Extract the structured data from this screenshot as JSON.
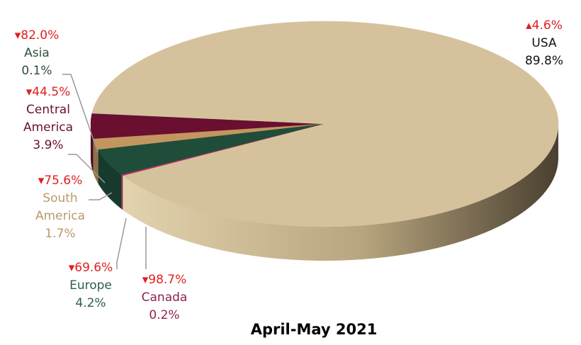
{
  "chart_data": {
    "type": "pie3d",
    "title": "April-May 2021",
    "categories": [
      "Asia",
      "Central\nAmerica",
      "South\nAmerica",
      "Europe",
      "Canada",
      "USA"
    ],
    "values": [
      0.1,
      3.9,
      1.7,
      4.2,
      0.2,
      89.8
    ],
    "value_labels": [
      "0.1%",
      "3.9%",
      "1.7%",
      "4.2%",
      "0.2%",
      "89.8%"
    ],
    "changes": [
      -82.0,
      -44.5,
      -75.6,
      -69.6,
      -98.7,
      4.6
    ],
    "change_labels": [
      "▾82.0%",
      "▾44.5%",
      "▾75.6%",
      "▾69.6%",
      "▾98.7%",
      "▴4.6%"
    ],
    "colors": [
      "#34456a",
      "#6a0f30",
      "#c3965f",
      "#1f4d3a",
      "#b03060",
      "#d5c29c"
    ],
    "label_colors": [
      "#2e4d3a",
      "#6a0f30",
      "#b89a6a",
      "#2e5e45",
      "#8b2252",
      "#111111"
    ]
  }
}
